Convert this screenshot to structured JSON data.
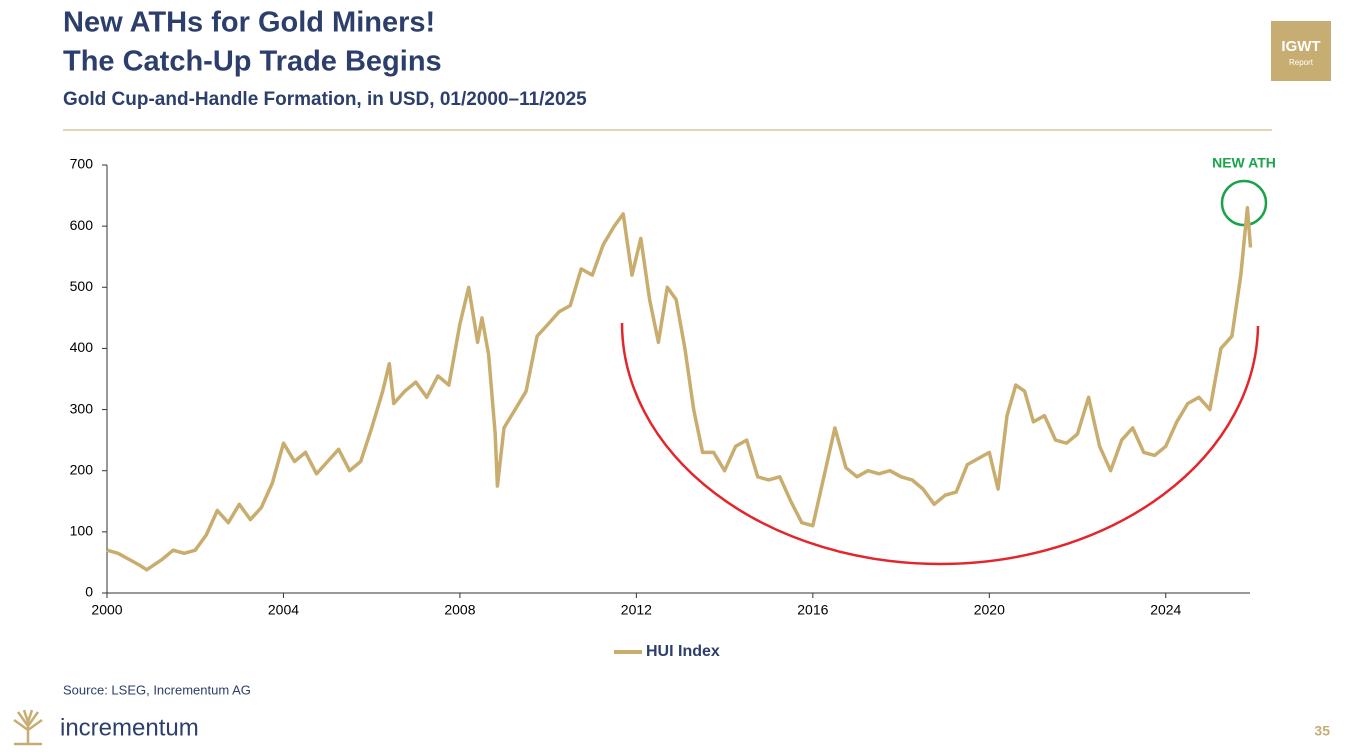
{
  "slide": {
    "title_lines": [
      "New ATHs for Gold Miners!",
      "The Catch-Up Trade Begins"
    ],
    "subtitle": "Gold Cup-and-Handle Formation, in USD, 01/2000–11/2025",
    "badge": [
      "IGWT",
      "Report"
    ],
    "source": "Source: LSEG, Incrementum AG",
    "brand": "incrementum",
    "page": 35
  },
  "chart_data": {
    "type": "line",
    "annotation": "NEW ATH",
    "x": [
      2000,
      2000.25,
      2000.5,
      2000.75,
      2000.9,
      2001.25,
      2001.5,
      2001.75,
      2002,
      2002.25,
      2002.5,
      2002.75,
      2003,
      2003.25,
      2003.5,
      2003.75,
      2004,
      2004.25,
      2004.5,
      2004.75,
      2005,
      2005.25,
      2005.5,
      2005.75,
      2006,
      2006.25,
      2006.4,
      2006.5,
      2006.75,
      2007,
      2007.25,
      2007.5,
      2007.75,
      2008,
      2008.2,
      2008.4,
      2008.5,
      2008.65,
      2008.8,
      2008.85,
      2009,
      2009.25,
      2009.5,
      2009.75,
      2010,
      2010.25,
      2010.5,
      2010.75,
      2011,
      2011.25,
      2011.5,
      2011.7,
      2011.9,
      2012.1,
      2012.3,
      2012.5,
      2012.7,
      2012.9,
      2013.1,
      2013.3,
      2013.5,
      2013.75,
      2014,
      2014.25,
      2014.5,
      2014.75,
      2015,
      2015.25,
      2015.5,
      2015.75,
      2016,
      2016.25,
      2016.5,
      2016.75,
      2017,
      2017.25,
      2017.5,
      2017.75,
      2018,
      2018.25,
      2018.5,
      2018.75,
      2019,
      2019.25,
      2019.5,
      2019.75,
      2020,
      2020.2,
      2020.4,
      2020.6,
      2020.8,
      2021,
      2021.25,
      2021.5,
      2021.75,
      2022,
      2022.25,
      2022.5,
      2022.75,
      2023,
      2023.25,
      2023.5,
      2023.75,
      2024,
      2024.25,
      2024.5,
      2024.75,
      2025,
      2025.25,
      2025.5,
      2025.7,
      2025.85,
      2025.92
    ],
    "series": [
      {
        "name": "HUI Index",
        "color": "#c9ad6e",
        "values": [
          70,
          65,
          55,
          45,
          38,
          55,
          70,
          65,
          70,
          95,
          135,
          115,
          145,
          120,
          140,
          180,
          245,
          215,
          230,
          195,
          215,
          235,
          200,
          215,
          270,
          330,
          375,
          310,
          330,
          345,
          320,
          355,
          340,
          440,
          500,
          410,
          450,
          390,
          260,
          175,
          270,
          300,
          330,
          420,
          440,
          460,
          470,
          530,
          520,
          570,
          600,
          620,
          520,
          580,
          480,
          410,
          500,
          480,
          400,
          300,
          230,
          230,
          200,
          240,
          250,
          190,
          185,
          190,
          150,
          115,
          110,
          190,
          270,
          205,
          190,
          200,
          195,
          200,
          190,
          185,
          170,
          145,
          160,
          165,
          210,
          220,
          230,
          170,
          290,
          340,
          330,
          280,
          290,
          250,
          245,
          260,
          320,
          240,
          200,
          250,
          270,
          230,
          225,
          240,
          280,
          310,
          320,
          300,
          400,
          420,
          520,
          630,
          565
        ]
      }
    ],
    "xlim": [
      2000,
      2026
    ],
    "xticks": [
      2000,
      2004,
      2008,
      2012,
      2016,
      2020,
      2024
    ],
    "ylim": [
      0,
      700
    ],
    "yticks": [
      0,
      100,
      200,
      300,
      400,
      500,
      600,
      700
    ],
    "grid": false,
    "legend": "bottom"
  }
}
